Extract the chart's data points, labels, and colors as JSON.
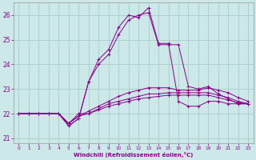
{
  "xlabel": "Windchill (Refroidissement éolien,°C)",
  "bg_color": "#cce8e8",
  "grid_color": "#aacccc",
  "line_color": "#880088",
  "x_values": [
    0,
    1,
    2,
    3,
    4,
    5,
    6,
    7,
    8,
    9,
    10,
    11,
    12,
    13,
    14,
    15,
    16,
    17,
    18,
    19,
    20,
    21,
    22,
    23
  ],
  "series": [
    [
      22.0,
      22.0,
      22.0,
      22.0,
      22.0,
      21.5,
      21.8,
      23.3,
      24.0,
      24.4,
      25.2,
      25.8,
      26.0,
      26.1,
      24.8,
      24.8,
      24.8,
      23.1,
      23.0,
      23.1,
      22.8,
      22.6,
      22.4,
      22.4
    ],
    [
      22.0,
      22.0,
      22.0,
      22.0,
      22.0,
      21.5,
      21.8,
      23.3,
      24.2,
      24.6,
      25.5,
      26.0,
      25.9,
      26.3,
      24.85,
      24.85,
      22.5,
      22.3,
      22.3,
      22.5,
      22.5,
      22.4,
      22.4,
      22.4
    ],
    [
      22.0,
      22.0,
      22.0,
      22.0,
      22.0,
      21.6,
      22.0,
      22.0,
      22.2,
      22.4,
      22.5,
      22.6,
      22.7,
      22.8,
      22.8,
      22.85,
      22.85,
      22.85,
      22.85,
      22.85,
      22.75,
      22.65,
      22.5,
      22.4
    ],
    [
      22.0,
      22.0,
      22.0,
      22.0,
      22.0,
      21.6,
      21.9,
      22.0,
      22.15,
      22.3,
      22.4,
      22.5,
      22.6,
      22.65,
      22.7,
      22.75,
      22.75,
      22.75,
      22.75,
      22.75,
      22.65,
      22.55,
      22.45,
      22.4
    ],
    [
      22.0,
      22.0,
      22.0,
      22.0,
      22.0,
      21.6,
      21.9,
      22.1,
      22.3,
      22.5,
      22.7,
      22.85,
      22.95,
      23.05,
      23.05,
      23.05,
      22.95,
      22.95,
      22.95,
      23.05,
      22.95,
      22.85,
      22.65,
      22.5
    ]
  ],
  "yticks": [
    21,
    22,
    23,
    24,
    25,
    26
  ],
  "ylim": [
    20.8,
    26.5
  ],
  "xlim": [
    -0.5,
    23.5
  ],
  "figsize": [
    3.2,
    2.0
  ],
  "dpi": 100
}
